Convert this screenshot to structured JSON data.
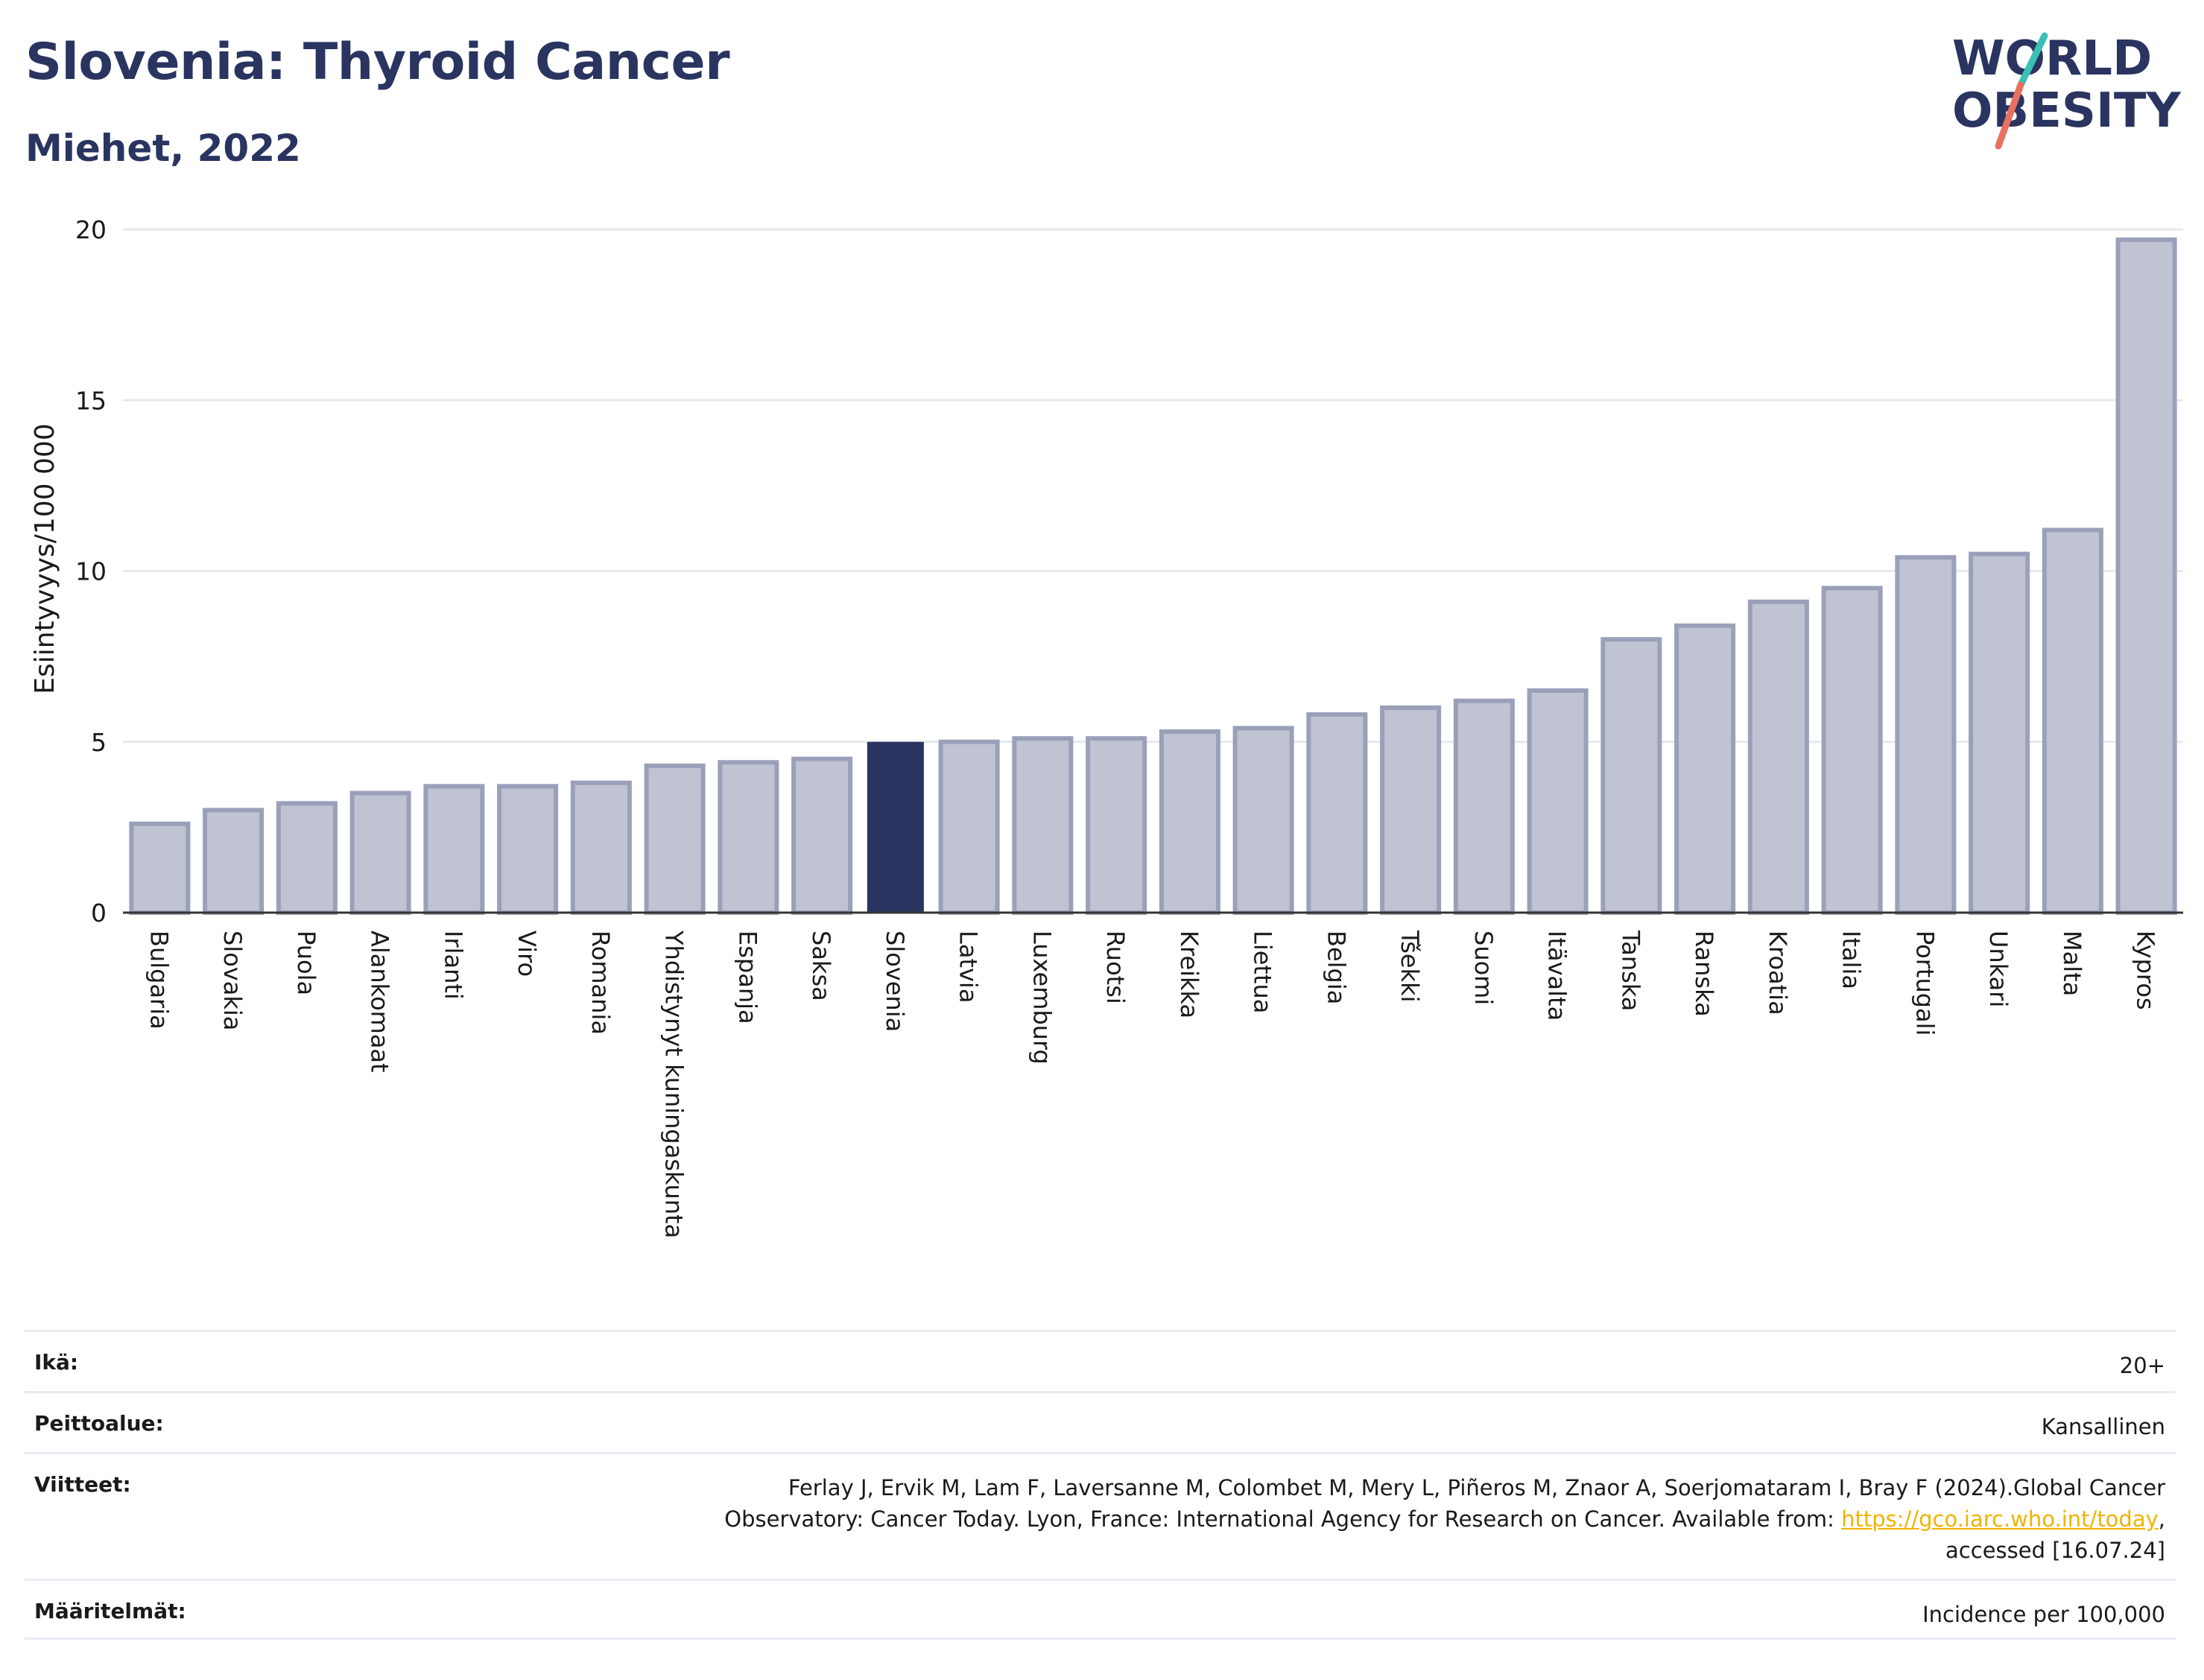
{
  "header": {
    "title": "Slovenia: Thyroid Cancer",
    "subtitle": "Miehet, 2022"
  },
  "logo": {
    "line1": "WORLD",
    "line2": "OBESITY",
    "colors": {
      "text": "#2a3460",
      "slash_top": "#3bbfb6",
      "slash_bottom": "#e8705f"
    }
  },
  "chart_data": {
    "type": "bar",
    "title": "",
    "xlabel": "",
    "ylabel": "Esiintyvyys/100 000",
    "ylim": [
      0,
      20
    ],
    "yticks": [
      0,
      5,
      10,
      15,
      20
    ],
    "grid": true,
    "highlight": "Slovenia",
    "colors": {
      "bar": "#c0c3d1",
      "bar_edge": "#9aa0b9",
      "highlight": "#2a3460",
      "grid": "#e6e8ef"
    },
    "categories": [
      "Bulgaria",
      "Slovakia",
      "Puola",
      "Alankomaat",
      "Irlanti",
      "Viro",
      "Romania",
      "Yhdistynyt kuningaskunta",
      "Espanja",
      "Saksa",
      "Slovenia",
      "Latvia",
      "Luxemburg",
      "Ruotsi",
      "Kreikka",
      "Liettua",
      "Belgia",
      "Tšekki",
      "Suomi",
      "Itävalta",
      "Tanska",
      "Ranska",
      "Kroatia",
      "Italia",
      "Portugali",
      "Unkari",
      "Malta",
      "Kypros"
    ],
    "values": [
      2.6,
      3.0,
      3.2,
      3.5,
      3.7,
      3.7,
      3.8,
      4.3,
      4.4,
      4.5,
      5.0,
      5.0,
      5.1,
      5.1,
      5.3,
      5.4,
      5.8,
      6.0,
      6.2,
      6.5,
      8.0,
      8.4,
      9.1,
      9.5,
      10.4,
      10.5,
      11.2,
      19.7
    ]
  },
  "info": {
    "age_label": "Ikä:",
    "age_value": "20+",
    "coverage_label": "Peittoalue:",
    "coverage_value": "Kansallinen",
    "refs_label": "Viitteet:",
    "refs_line1": "Ferlay J, Ervik M, Lam F, Laversanne M, Colombet M, Mery L, Piñeros M, Znaor A, Soerjomataram I, Bray F (2024).Global Cancer",
    "refs_line2_pre": "Observatory: Cancer Today. Lyon, France: International Agency for Research on Cancer. Available from: ",
    "refs_link": "https://gco.iarc.who.int/today",
    "refs_line2_post": ",",
    "refs_line3": "accessed [16.07.24]",
    "defs_label": "Määritelmät:",
    "defs_value": "Incidence per 100,000"
  }
}
